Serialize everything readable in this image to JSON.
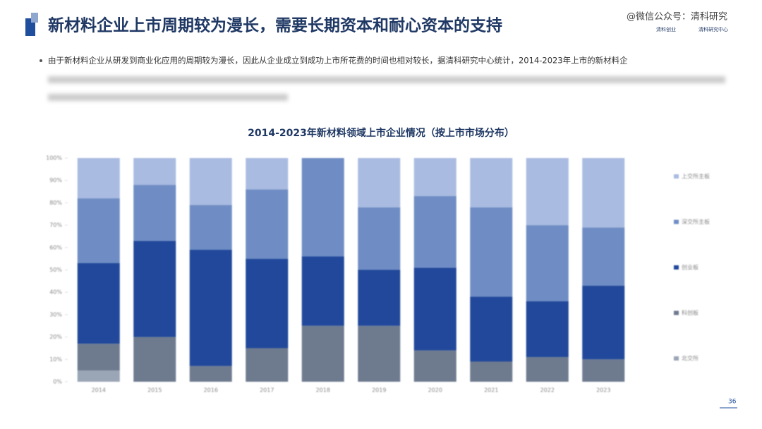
{
  "header": {
    "title": "新材料企业上市周期较为漫长，需要长期资本和耐心资本的支持",
    "watermark": "@微信公众号：清科研究",
    "logo_left": "清科创业",
    "logo_right": "清科研究中心",
    "bullet": "由于新材料企业从研发到商业化应用的周期较为漫长，因此从企业成立到成功上市所花费的时间也相对较长，据清科研究中心统计，2014-2023年上市的新材料企"
  },
  "page_number": 36,
  "chart_data": {
    "type": "bar",
    "stacked": true,
    "title": "2014-2023年新材料领域上市企业情况（按上市市场分布）",
    "categories": [
      "2014",
      "2015",
      "2016",
      "2017",
      "2018",
      "2019",
      "2020",
      "2021",
      "2022",
      "2023"
    ],
    "series": [
      {
        "name": "北交所",
        "color": "#9aa5b5",
        "values": [
          5,
          0,
          0,
          0,
          0,
          0,
          0,
          0,
          0,
          0
        ]
      },
      {
        "name": "科创板",
        "color": "#6e7b8f",
        "values": [
          12,
          20,
          7,
          15,
          25,
          25,
          14,
          9,
          11,
          10
        ]
      },
      {
        "name": "创业板",
        "color": "#21489a",
        "values": [
          36,
          43,
          52,
          40,
          31,
          25,
          37,
          29,
          25,
          33
        ]
      },
      {
        "name": "深交所主板",
        "color": "#6f8dc4",
        "values": [
          29,
          25,
          20,
          31,
          44,
          28,
          32,
          40,
          34,
          26
        ]
      },
      {
        "name": "上交所主板",
        "color": "#a9bbe0",
        "values": [
          18,
          12,
          21,
          14,
          0,
          22,
          17,
          22,
          30,
          31
        ]
      }
    ],
    "ylim": [
      0,
      100
    ],
    "yticks": [
      {
        "value": 0,
        "label": "0%"
      },
      {
        "value": 10,
        "label": "10%"
      },
      {
        "value": 20,
        "label": "20%"
      },
      {
        "value": 30,
        "label": "30%"
      },
      {
        "value": 40,
        "label": "40%"
      },
      {
        "value": 50,
        "label": "50%"
      },
      {
        "value": 60,
        "label": "60%"
      },
      {
        "value": 70,
        "label": "70%"
      },
      {
        "value": 80,
        "label": "80%"
      },
      {
        "value": 90,
        "label": "90%"
      },
      {
        "value": 100,
        "label": "100%"
      }
    ],
    "legend": "right"
  }
}
